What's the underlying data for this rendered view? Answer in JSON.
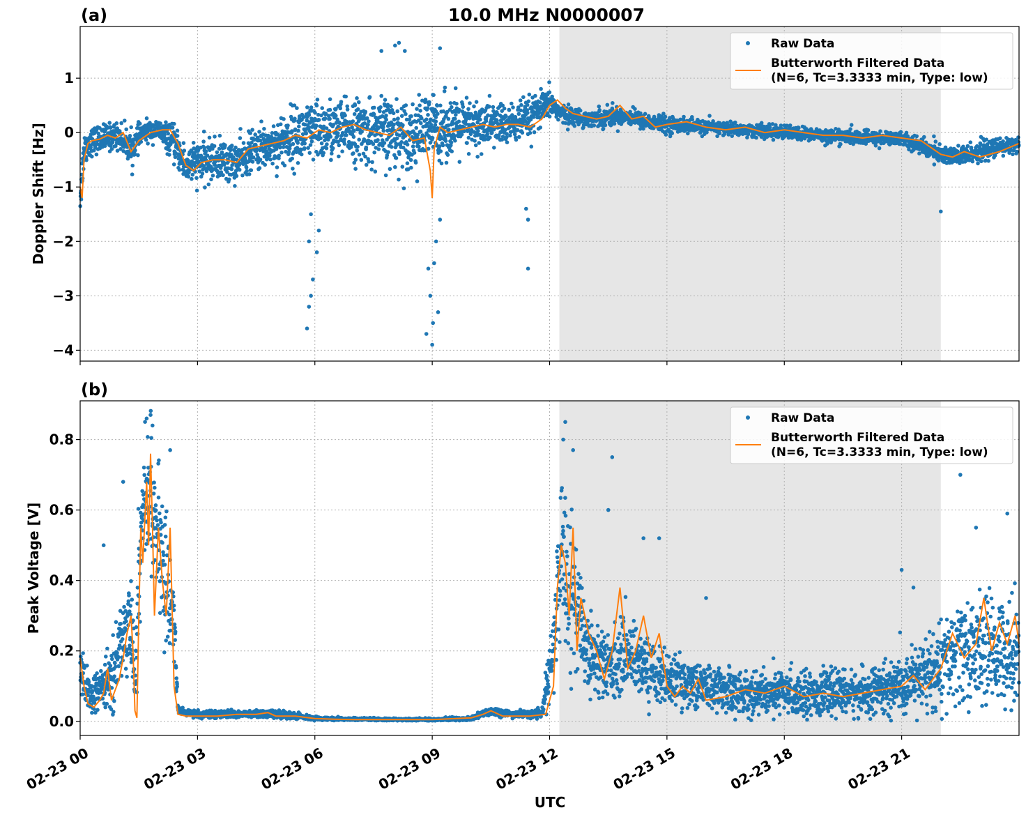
{
  "figure": {
    "title": "10.0 MHz N0000007",
    "xlabel": "UTC",
    "x_ticks": [
      "02-23 00",
      "02-23 03",
      "02-23 06",
      "02-23 09",
      "02-23 12",
      "02-23 15",
      "02-23 18",
      "02-23 21"
    ]
  },
  "colors": {
    "raw": "#1f77b4",
    "filtered": "#ff7f0e",
    "night_shading": "#e6e6e6"
  },
  "chart_data": [
    {
      "panel": "(a)",
      "type": "scatter",
      "ylabel": "Doppler Shift [Hz]",
      "xlim_hours": [
        0,
        24
      ],
      "ylim": [
        -4.2,
        1.95
      ],
      "y_ticks": [
        1,
        0,
        -1,
        -2,
        -3,
        -4
      ],
      "y_tick_labels": [
        "1",
        "0",
        "−1",
        "−2",
        "−3",
        "−4"
      ],
      "shaded_span_hours": [
        12.25,
        22.0
      ],
      "grid": true,
      "legend_position": "top-right",
      "legend": [
        "Raw Data",
        "Butterworth Filtered Data",
        "(N=6, Tc=3.3333 min, Type: low)"
      ],
      "series": [
        {
          "name": "Raw Data",
          "type": "scatter",
          "trend_x_hours": [
            0,
            0.1,
            0.3,
            0.6,
            1.0,
            1.3,
            1.6,
            2.0,
            2.4,
            2.7,
            3.0,
            3.5,
            4.0,
            4.5,
            5.0,
            5.5,
            6.0,
            6.5,
            7.0,
            7.5,
            8.0,
            8.5,
            9.0,
            9.5,
            10.0,
            10.5,
            11.0,
            11.5,
            12.0,
            12.3,
            12.6,
            13.0,
            13.5,
            14.0,
            14.5,
            15.0,
            16.0,
            17.0,
            18.0,
            19.0,
            20.0,
            21.0,
            22.0,
            22.5,
            23.0,
            24.0
          ],
          "trend_y": [
            -1.2,
            -0.3,
            -0.15,
            -0.1,
            -0.05,
            -0.3,
            0.0,
            0.05,
            -0.2,
            -0.6,
            -0.55,
            -0.5,
            -0.55,
            -0.3,
            -0.2,
            -0.05,
            0.0,
            0.05,
            0.05,
            0.0,
            0.0,
            -0.05,
            0.1,
            0.1,
            0.1,
            0.15,
            0.15,
            0.25,
            0.55,
            0.35,
            0.3,
            0.25,
            0.3,
            0.3,
            0.2,
            0.15,
            0.1,
            0.05,
            0.0,
            -0.05,
            -0.1,
            -0.1,
            -0.4,
            -0.45,
            -0.35,
            -0.2
          ],
          "spread": [
            0.3,
            0.25,
            0.2,
            0.2,
            0.2,
            0.25,
            0.15,
            0.15,
            0.25,
            0.3,
            0.3,
            0.3,
            0.3,
            0.3,
            0.35,
            0.45,
            0.45,
            0.45,
            0.45,
            0.5,
            0.5,
            0.5,
            0.5,
            0.45,
            0.4,
            0.35,
            0.3,
            0.3,
            0.2,
            0.15,
            0.12,
            0.12,
            0.15,
            0.12,
            0.12,
            0.12,
            0.1,
            0.1,
            0.1,
            0.1,
            0.1,
            0.1,
            0.15,
            0.15,
            0.15,
            0.12
          ],
          "outliers": [
            [
              5.8,
              -3.6
            ],
            [
              5.85,
              -3.2
            ],
            [
              5.9,
              -3.0
            ],
            [
              5.95,
              -2.7
            ],
            [
              5.85,
              -2.0
            ],
            [
              5.9,
              -1.5
            ],
            [
              6.05,
              -2.2
            ],
            [
              6.1,
              -1.8
            ],
            [
              8.85,
              -3.7
            ],
            [
              8.95,
              -3.0
            ],
            [
              9.0,
              -3.9
            ],
            [
              9.02,
              -3.5
            ],
            [
              9.05,
              -2.4
            ],
            [
              9.1,
              -2.0
            ],
            [
              9.15,
              -3.3
            ],
            [
              8.9,
              -2.5
            ],
            [
              9.2,
              -1.6
            ],
            [
              11.45,
              -2.5
            ],
            [
              11.45,
              -1.6
            ],
            [
              11.4,
              -1.4
            ],
            [
              22.0,
              -1.45
            ],
            [
              8.05,
              1.6
            ],
            [
              8.15,
              1.65
            ],
            [
              8.3,
              1.5
            ],
            [
              9.2,
              1.55
            ],
            [
              7.7,
              1.5
            ]
          ]
        },
        {
          "name": "Butterworth Filtered Data",
          "type": "line",
          "x_hours": [
            0,
            0.05,
            0.1,
            0.2,
            0.3,
            0.5,
            0.7,
            0.9,
            1.1,
            1.3,
            1.5,
            1.8,
            2.1,
            2.3,
            2.5,
            2.7,
            2.9,
            3.1,
            3.4,
            3.7,
            4.0,
            4.3,
            4.6,
            4.9,
            5.2,
            5.5,
            5.8,
            6.1,
            6.4,
            6.7,
            7.0,
            7.3,
            7.6,
            7.9,
            8.2,
            8.5,
            8.8,
            8.95,
            9.0,
            9.05,
            9.2,
            9.4,
            9.7,
            10.0,
            10.3,
            10.6,
            10.9,
            11.2,
            11.5,
            11.8,
            12.0,
            12.2,
            12.4,
            12.6,
            12.9,
            13.2,
            13.5,
            13.8,
            14.1,
            14.4,
            14.7,
            15.0,
            15.5,
            16.0,
            16.5,
            17.0,
            17.5,
            18.0,
            18.5,
            19.0,
            19.5,
            20.0,
            20.5,
            21.0,
            21.5,
            22.0,
            22.3,
            22.6,
            23.0,
            23.5,
            24.0
          ],
          "y": [
            -1.0,
            -1.2,
            -0.5,
            -0.2,
            -0.15,
            -0.12,
            -0.05,
            -0.1,
            0.0,
            -0.35,
            -0.15,
            0.0,
            0.05,
            0.05,
            -0.2,
            -0.6,
            -0.7,
            -0.55,
            -0.5,
            -0.5,
            -0.55,
            -0.3,
            -0.25,
            -0.2,
            -0.15,
            -0.05,
            -0.1,
            0.05,
            0.0,
            0.1,
            0.15,
            0.05,
            0.0,
            -0.05,
            0.1,
            -0.15,
            -0.1,
            -0.7,
            -1.2,
            -0.3,
            0.1,
            0.0,
            0.05,
            0.1,
            0.15,
            0.1,
            0.15,
            0.15,
            0.1,
            0.25,
            0.5,
            0.6,
            0.45,
            0.35,
            0.3,
            0.25,
            0.3,
            0.5,
            0.25,
            0.3,
            0.1,
            0.15,
            0.2,
            0.1,
            0.05,
            0.1,
            0.0,
            0.05,
            0.0,
            -0.05,
            -0.05,
            -0.1,
            -0.05,
            -0.1,
            -0.15,
            -0.4,
            -0.45,
            -0.35,
            -0.45,
            -0.35,
            -0.2
          ]
        }
      ]
    },
    {
      "panel": "(b)",
      "type": "scatter",
      "ylabel": "Peak Voltage [V]",
      "xlim_hours": [
        0,
        24
      ],
      "ylim": [
        -0.04,
        0.91
      ],
      "y_ticks": [
        0.0,
        0.2,
        0.4,
        0.6,
        0.8
      ],
      "y_tick_labels": [
        "0.0",
        "0.2",
        "0.4",
        "0.6",
        "0.8"
      ],
      "shaded_span_hours": [
        12.25,
        22.0
      ],
      "grid": true,
      "legend_position": "top-right",
      "legend": [
        "Raw Data",
        "Butterworth Filtered Data",
        "(N=6, Tc=3.3333 min, Type: low)"
      ],
      "series": [
        {
          "name": "Raw Data",
          "type": "scatter",
          "trend_x_hours": [
            0,
            0.3,
            0.6,
            0.9,
            1.1,
            1.3,
            1.4,
            1.5,
            1.6,
            1.8,
            2.0,
            2.2,
            2.4,
            2.5,
            3.0,
            4.0,
            5.0,
            5.5,
            6.0,
            7.0,
            8.0,
            9.0,
            10.0,
            10.5,
            11.0,
            11.8,
            12.1,
            12.3,
            12.6,
            13.0,
            13.5,
            14.0,
            14.5,
            15.0,
            16.0,
            17.0,
            18.0,
            19.0,
            20.0,
            21.0,
            22.0,
            22.5,
            23.0,
            24.0
          ],
          "trend_y": [
            0.12,
            0.07,
            0.1,
            0.15,
            0.25,
            0.3,
            0.1,
            0.4,
            0.6,
            0.65,
            0.5,
            0.4,
            0.3,
            0.03,
            0.02,
            0.02,
            0.02,
            0.015,
            0.008,
            0.006,
            0.005,
            0.005,
            0.008,
            0.03,
            0.02,
            0.02,
            0.2,
            0.5,
            0.35,
            0.2,
            0.15,
            0.2,
            0.15,
            0.12,
            0.1,
            0.08,
            0.08,
            0.08,
            0.08,
            0.1,
            0.15,
            0.2,
            0.2,
            0.2
          ],
          "spread": [
            0.06,
            0.04,
            0.05,
            0.08,
            0.1,
            0.12,
            0.05,
            0.15,
            0.15,
            0.15,
            0.15,
            0.15,
            0.1,
            0.01,
            0.008,
            0.008,
            0.01,
            0.008,
            0.004,
            0.003,
            0.003,
            0.003,
            0.005,
            0.01,
            0.008,
            0.008,
            0.1,
            0.2,
            0.15,
            0.1,
            0.08,
            0.08,
            0.07,
            0.06,
            0.05,
            0.05,
            0.05,
            0.05,
            0.05,
            0.06,
            0.1,
            0.12,
            0.12,
            0.12
          ],
          "outliers": [
            [
              1.7,
              0.86
            ],
            [
              1.8,
              0.87
            ],
            [
              1.85,
              0.84
            ],
            [
              2.3,
              0.77
            ],
            [
              1.1,
              0.68
            ],
            [
              0.6,
              0.5
            ],
            [
              12.4,
              0.85
            ],
            [
              12.35,
              0.8
            ],
            [
              12.6,
              0.77
            ],
            [
              13.6,
              0.75
            ],
            [
              13.5,
              0.6
            ],
            [
              14.4,
              0.52
            ],
            [
              14.8,
              0.52
            ],
            [
              16.0,
              0.35
            ],
            [
              22.5,
              0.7
            ],
            [
              23.7,
              0.59
            ],
            [
              21.0,
              0.43
            ],
            [
              21.3,
              0.38
            ],
            [
              22.9,
              0.55
            ]
          ]
        },
        {
          "name": "Butterworth Filtered Data",
          "type": "line",
          "x_hours": [
            0,
            0.1,
            0.2,
            0.35,
            0.5,
            0.6,
            0.7,
            0.8,
            0.9,
            1.0,
            1.1,
            1.2,
            1.3,
            1.35,
            1.4,
            1.45,
            1.5,
            1.55,
            1.6,
            1.7,
            1.75,
            1.8,
            1.85,
            1.9,
            2.0,
            2.1,
            2.2,
            2.3,
            2.4,
            2.5,
            2.7,
            3.0,
            3.5,
            4.0,
            4.5,
            4.8,
            5.0,
            5.5,
            6.0,
            6.5,
            7.0,
            8.0,
            9.0,
            10.0,
            10.3,
            10.5,
            10.8,
            11.0,
            11.5,
            11.9,
            12.1,
            12.2,
            12.3,
            12.4,
            12.5,
            12.6,
            12.7,
            12.8,
            13.0,
            13.2,
            13.4,
            13.6,
            13.8,
            14.0,
            14.2,
            14.4,
            14.6,
            14.8,
            15.0,
            15.2,
            15.4,
            15.6,
            15.8,
            16.0,
            16.5,
            17.0,
            17.5,
            18.0,
            18.5,
            19.0,
            19.5,
            20.0,
            20.5,
            21.0,
            21.3,
            21.6,
            22.0,
            22.3,
            22.6,
            22.9,
            23.1,
            23.3,
            23.5,
            23.7,
            23.9,
            24.0
          ],
          "y": [
            0.18,
            0.1,
            0.05,
            0.04,
            0.06,
            0.08,
            0.15,
            0.06,
            0.09,
            0.12,
            0.18,
            0.25,
            0.3,
            0.2,
            0.03,
            0.01,
            0.3,
            0.55,
            0.45,
            0.68,
            0.5,
            0.76,
            0.55,
            0.3,
            0.55,
            0.4,
            0.3,
            0.55,
            0.1,
            0.02,
            0.015,
            0.015,
            0.015,
            0.02,
            0.02,
            0.025,
            0.015,
            0.015,
            0.008,
            0.006,
            0.005,
            0.005,
            0.005,
            0.01,
            0.02,
            0.03,
            0.015,
            0.015,
            0.015,
            0.02,
            0.1,
            0.38,
            0.5,
            0.45,
            0.3,
            0.55,
            0.2,
            0.35,
            0.25,
            0.2,
            0.12,
            0.2,
            0.38,
            0.15,
            0.2,
            0.3,
            0.18,
            0.25,
            0.1,
            0.07,
            0.1,
            0.08,
            0.12,
            0.06,
            0.07,
            0.09,
            0.08,
            0.1,
            0.07,
            0.08,
            0.07,
            0.08,
            0.09,
            0.1,
            0.13,
            0.09,
            0.15,
            0.25,
            0.18,
            0.22,
            0.35,
            0.2,
            0.28,
            0.22,
            0.3,
            0.22
          ]
        }
      ]
    }
  ]
}
